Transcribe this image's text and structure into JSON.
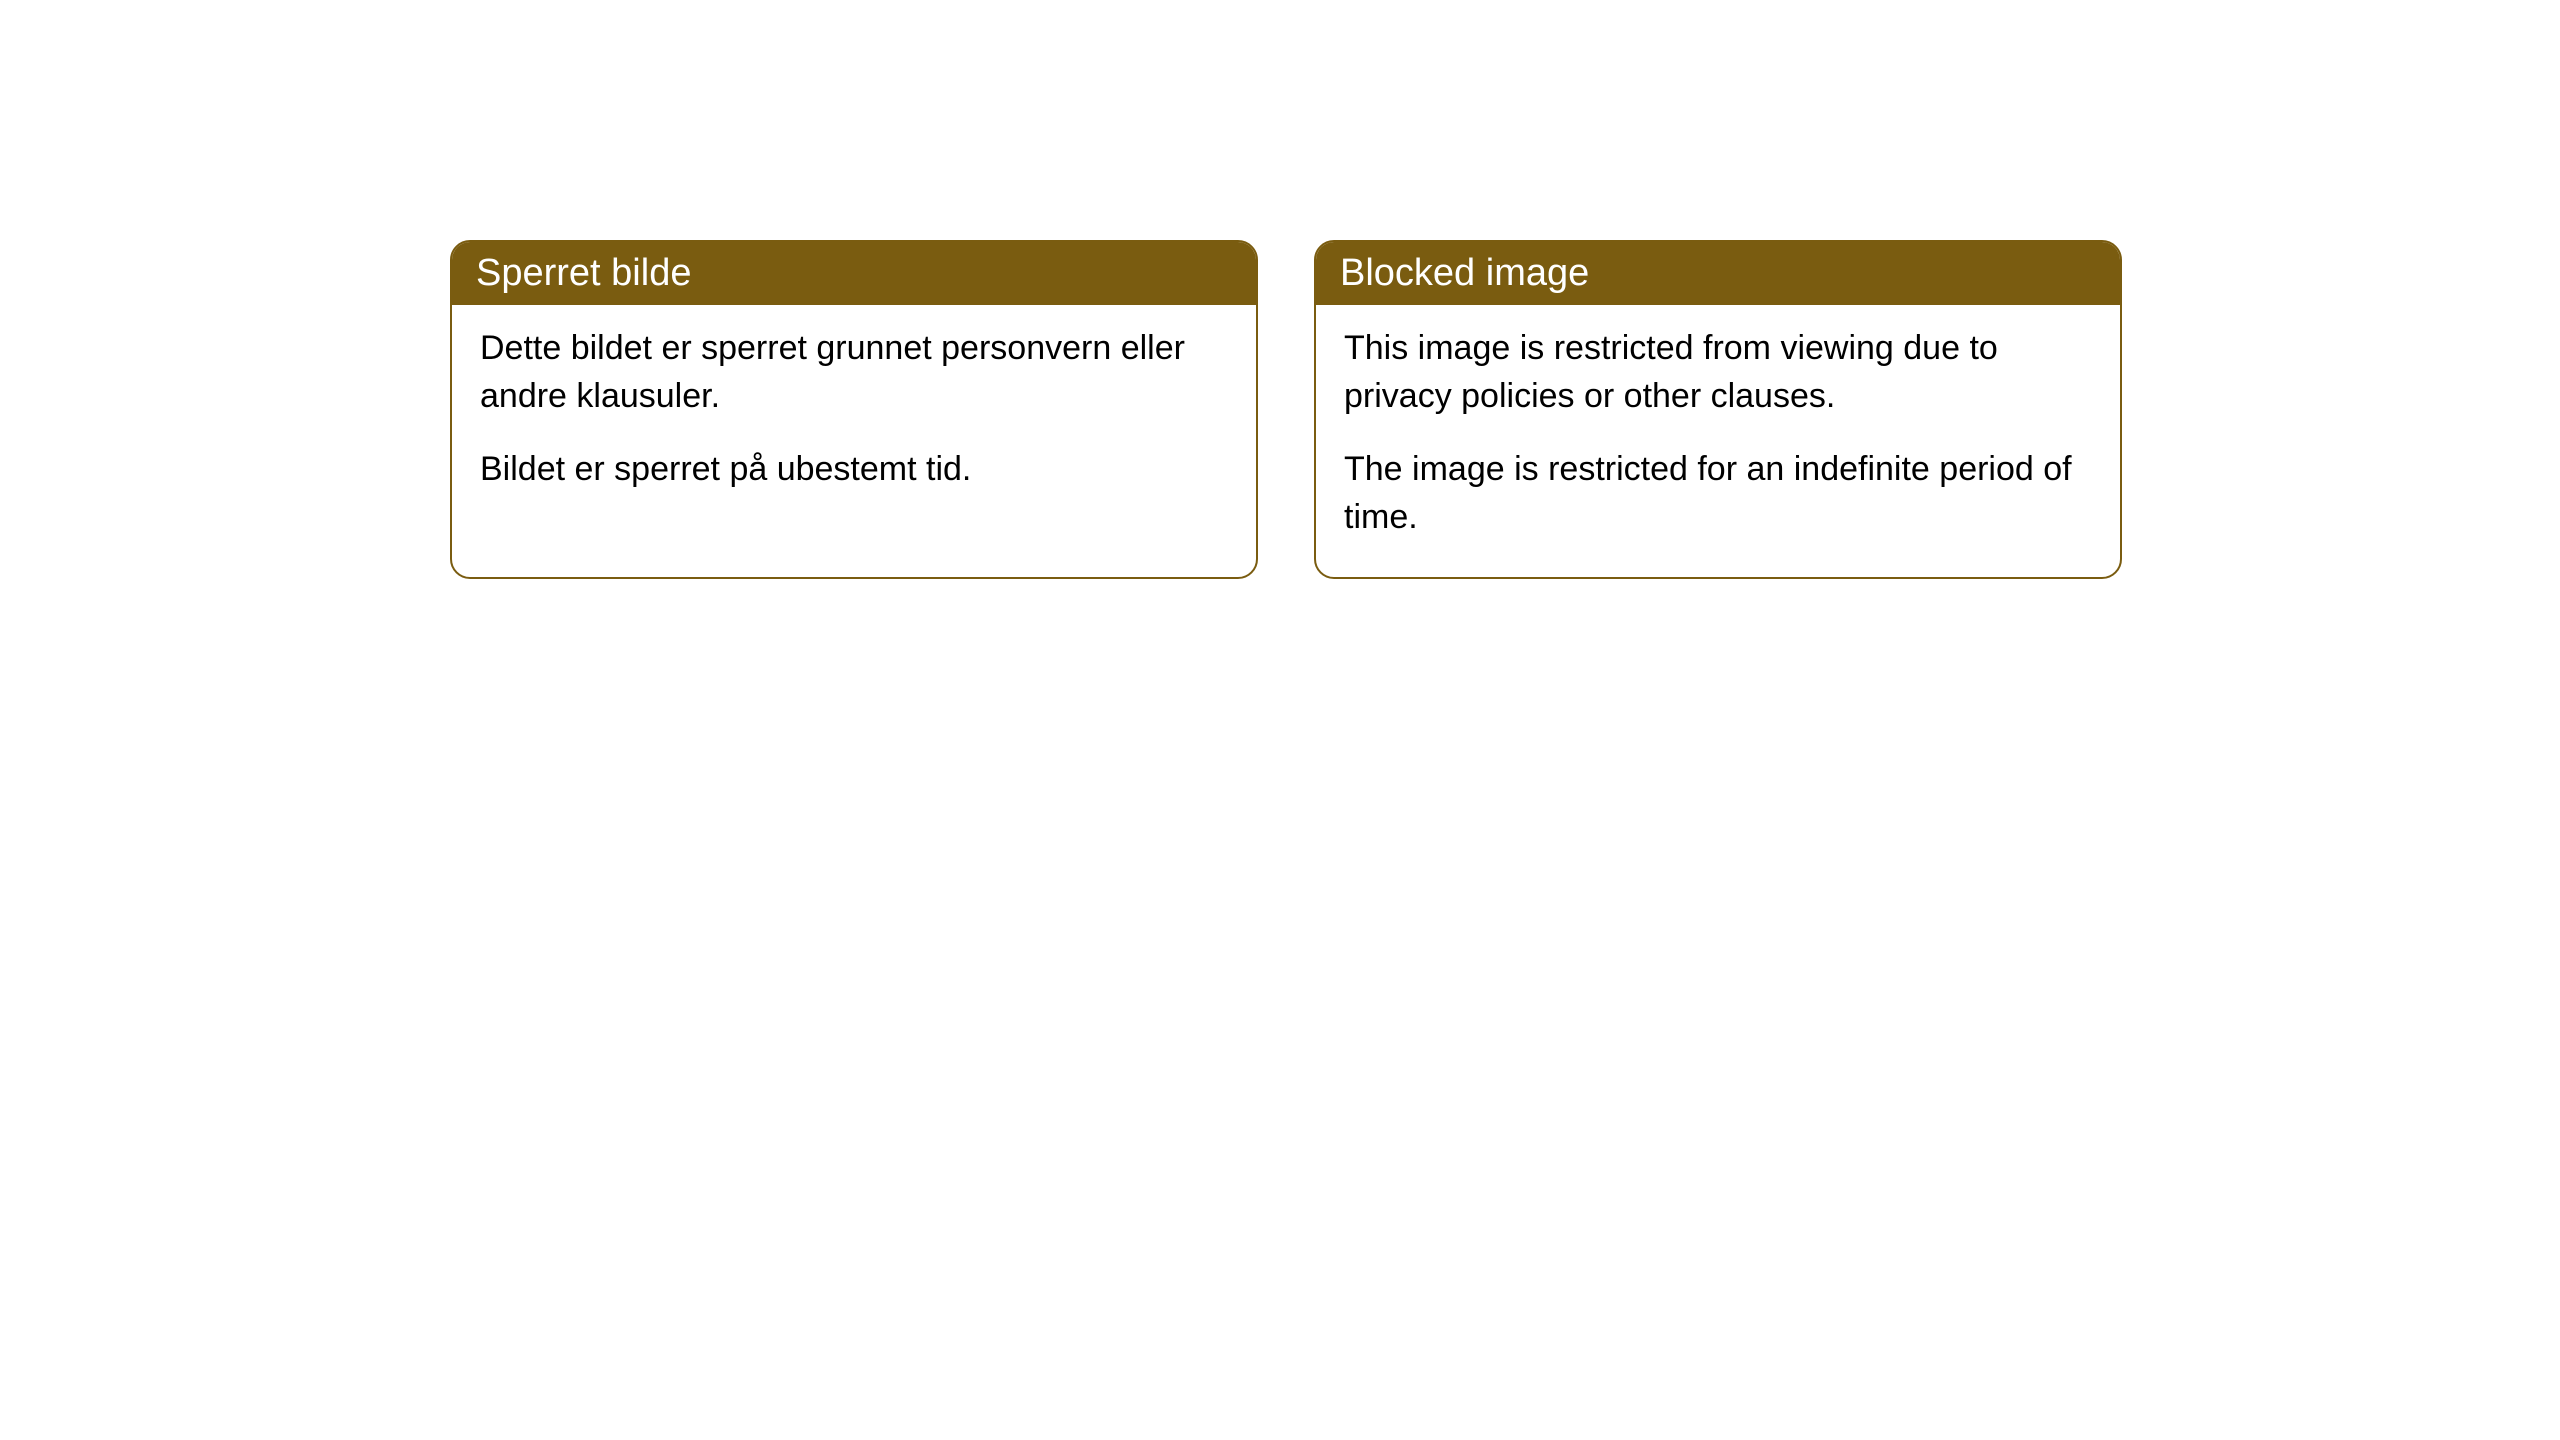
{
  "cards": [
    {
      "title": "Sperret bilde",
      "para1": "Dette bildet er sperret grunnet personvern eller andre klausuler.",
      "para2": "Bildet er sperret på ubestemt tid."
    },
    {
      "title": "Blocked image",
      "para1": "This image is restricted from viewing due to privacy policies or other clauses.",
      "para2": "The image is restricted for an indefinite period of time."
    }
  ],
  "style": {
    "header_bg": "#7a5c10",
    "header_color": "#ffffff",
    "border_color": "#7a5c10",
    "body_color": "#000000",
    "border_radius": "20px",
    "title_fontsize": "38px",
    "body_fontsize": "34px"
  }
}
